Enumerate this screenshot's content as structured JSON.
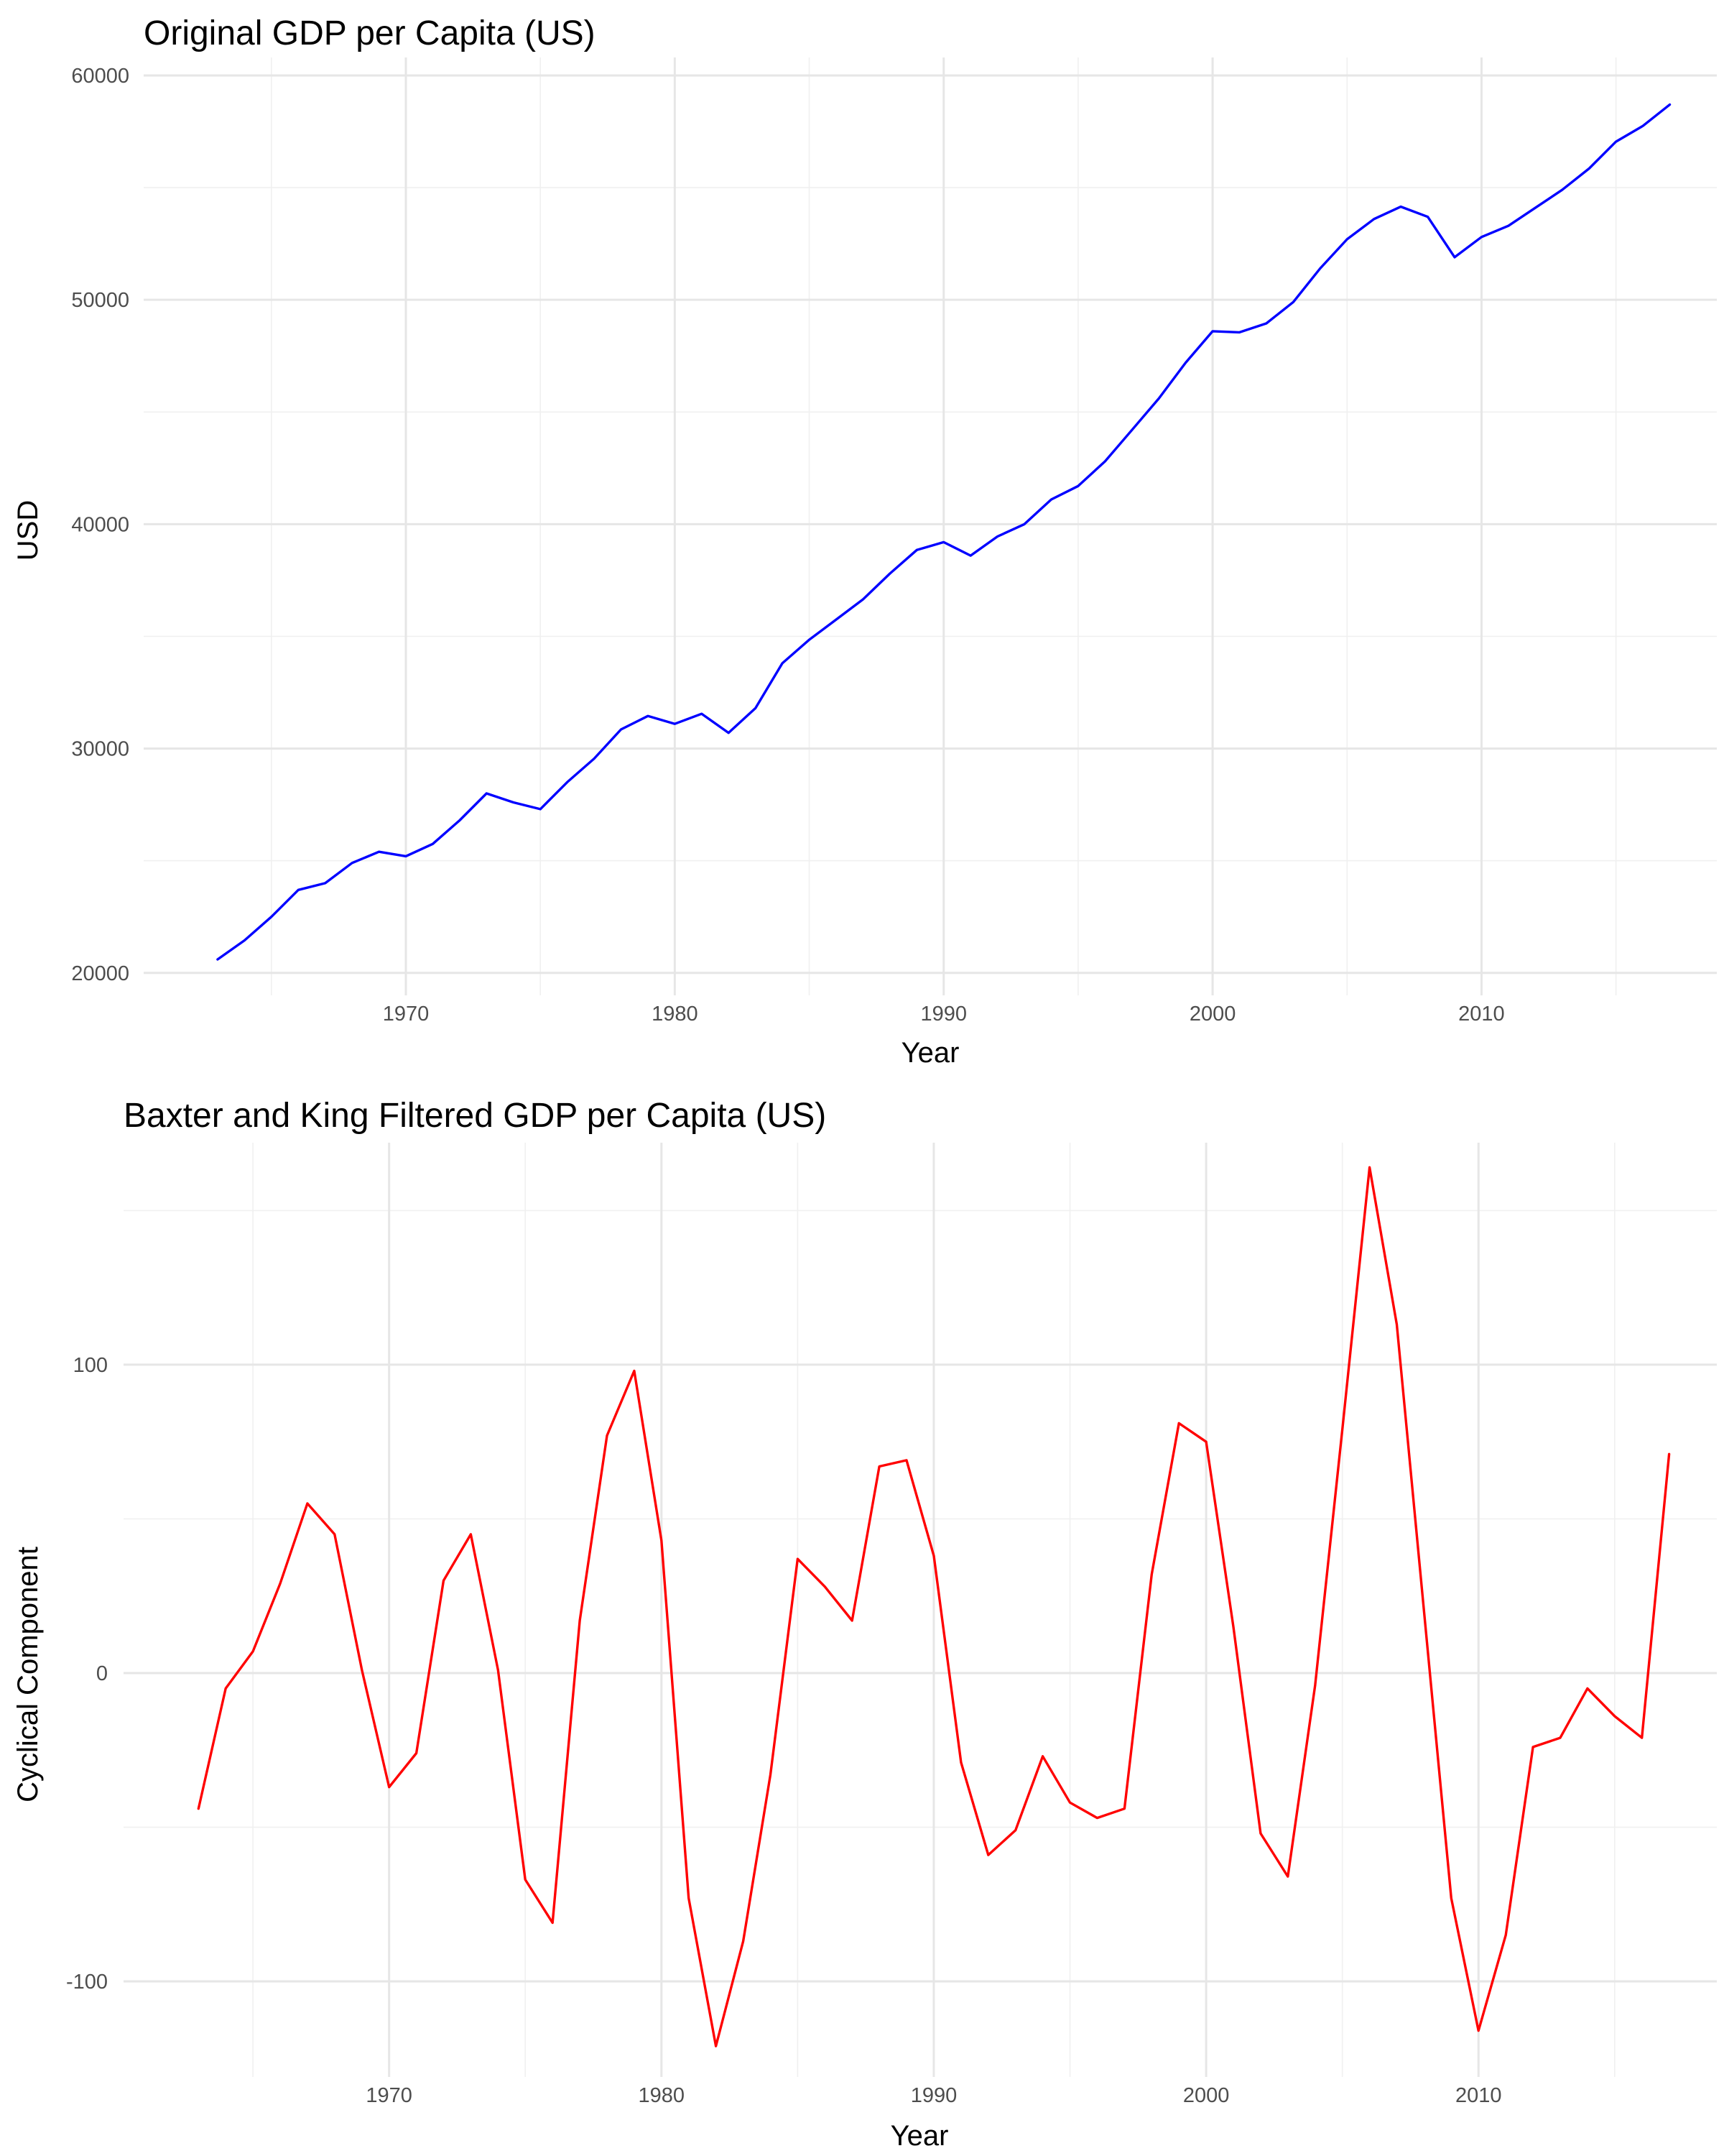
{
  "chart_data": [
    {
      "type": "line",
      "title": "Original GDP per Capita (US)",
      "xlabel": "Year",
      "ylabel": "USD",
      "xlim": [
        1960.25,
        2018.75
      ],
      "ylim": [
        19000,
        60800
      ],
      "x_ticks": [
        1970,
        1980,
        1990,
        2000,
        2010
      ],
      "x_tick_labels": [
        "1970",
        "1980",
        "1990",
        "2000",
        "2010"
      ],
      "y_ticks": [
        20000,
        30000,
        40000,
        50000,
        60000
      ],
      "y_tick_labels": [
        "20000",
        "30000",
        "40000",
        "50000",
        "60000"
      ],
      "grid": true,
      "legend": "none",
      "series": [
        {
          "color": "#0000ff",
          "x": [
            1963,
            1964,
            1965,
            1966,
            1967,
            1968,
            1969,
            1970,
            1971,
            1972,
            1973,
            1974,
            1975,
            1976,
            1977,
            1978,
            1979,
            1980,
            1981,
            1982,
            1983,
            1984,
            1985,
            1986,
            1987,
            1988,
            1989,
            1990,
            1991,
            1992,
            1993,
            1994,
            1995,
            1996,
            1997,
            1998,
            1999,
            2000,
            2001,
            2002,
            2003,
            2004,
            2005,
            2006,
            2007,
            2008,
            2009,
            2010,
            2011,
            2012,
            2013,
            2014,
            2015,
            2016,
            2017
          ],
          "values": [
            20600,
            21450,
            22500,
            23700,
            24000,
            24900,
            25400,
            25200,
            25750,
            26800,
            28000,
            27600,
            27300,
            28500,
            29550,
            30850,
            31450,
            31100,
            31550,
            30700,
            31800,
            33800,
            34850,
            35750,
            36650,
            37800,
            38850,
            39200,
            38600,
            39450,
            40000,
            41100,
            41700,
            42800,
            44200,
            45600,
            47200,
            48600,
            48550,
            48950,
            49900,
            51400,
            52700,
            53600,
            54150,
            53700,
            51900,
            52800,
            53300,
            54100,
            54900,
            55850,
            57050,
            57750,
            58700
          ]
        }
      ]
    },
    {
      "type": "line",
      "title": "Baxter and King Filtered GDP per Capita (US)",
      "xlabel": "Year",
      "ylabel": "Cyclical Component",
      "xlim": [
        1960.25,
        2018.75
      ],
      "ylim": [
        -131,
        172
      ],
      "x_ticks": [
        1970,
        1980,
        1990,
        2000,
        2010
      ],
      "x_tick_labels": [
        "1970",
        "1980",
        "1990",
        "2000",
        "2010"
      ],
      "y_ticks": [
        -100,
        0,
        100
      ],
      "y_tick_labels": [
        "-100",
        "0",
        "100"
      ],
      "grid": true,
      "legend": "none",
      "series": [
        {
          "color": "#ff0000",
          "x": [
            1963,
            1964,
            1965,
            1966,
            1967,
            1968,
            1969,
            1970,
            1971,
            1972,
            1973,
            1974,
            1975,
            1976,
            1977,
            1978,
            1979,
            1980,
            1981,
            1982,
            1983,
            1984,
            1985,
            1986,
            1987,
            1988,
            1989,
            1990,
            1991,
            1992,
            1993,
            1994,
            1995,
            1996,
            1997,
            1998,
            1999,
            2000,
            2001,
            2002,
            2003,
            2004,
            2005,
            2006,
            2007,
            2008,
            2009,
            2010,
            2011,
            2012,
            2013,
            2014,
            2015,
            2016,
            2017
          ],
          "values": [
            -44,
            -5,
            7,
            29,
            55,
            45,
            1,
            -37,
            -26,
            30,
            45,
            1,
            -67,
            -81,
            17,
            77,
            98,
            43,
            -73,
            -121,
            -87,
            -33,
            37,
            28,
            17,
            67,
            69,
            38,
            -29,
            -59,
            -51,
            -27,
            -42,
            -47,
            -44,
            32,
            81,
            75,
            15,
            -52,
            -66,
            -4,
            79,
            164,
            113,
            20,
            -73,
            -116,
            -85,
            -24,
            -21,
            -5,
            -14,
            -21,
            71
          ]
        }
      ]
    }
  ]
}
